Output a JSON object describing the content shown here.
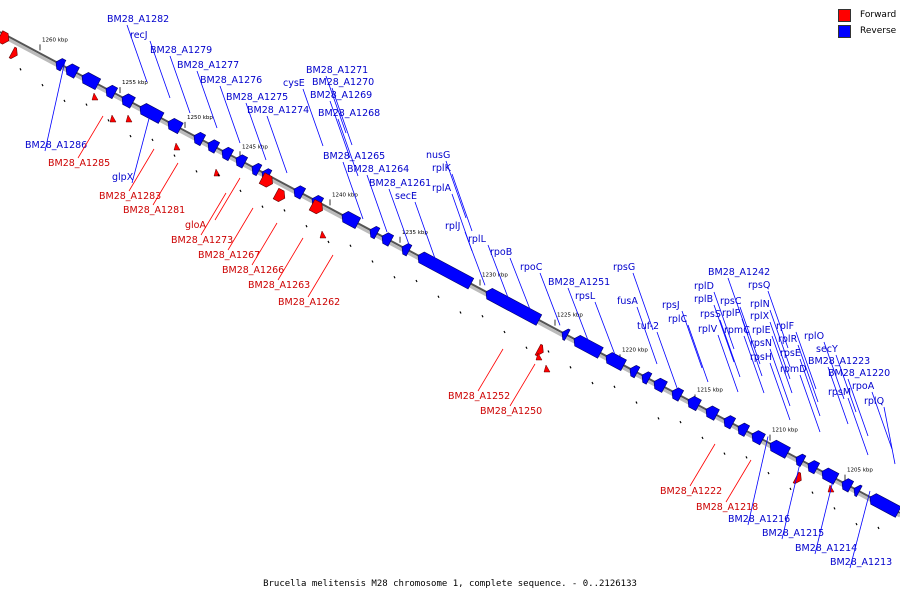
{
  "legend": [
    {
      "label": "Forward",
      "color": "#ff0000"
    },
    {
      "label": "Reverse",
      "color": "#0000ff"
    }
  ],
  "caption": "Brucella melitensis M28 chromosome 1, complete sequence. - 0..2126133",
  "ticks": [
    "1260 kbp",
    "1255 kbp",
    "1250 kbp",
    "1245 kbp",
    "1240 kbp",
    "1235 kbp",
    "1230 kbp",
    "1225 kbp",
    "1220 kbp",
    "1215 kbp",
    "1210 kbp",
    "1205 kbp"
  ],
  "reverse_labels": [
    "BM28_A1282",
    "recJ",
    "BM28_A1279",
    "BM28_A1277",
    "BM28_A1276",
    "cysE",
    "BM28_A1275",
    "BM28_A1274",
    "BM28_A1271",
    "BM28_A1270",
    "BM28_A1269",
    "BM28_A1268",
    "BM28_A1286",
    "glpX",
    "BM28_A1265",
    "BM28_A1264",
    "nusG",
    "rplK",
    "BM28_A1261",
    "rplA",
    "secE",
    "rplJ",
    "rplL",
    "rpoB",
    "rpoC",
    "BM28_A1251",
    "rpsL",
    "rpsG",
    "fusA",
    "tuf-2",
    "rpsJ",
    "rplD",
    "rplB",
    "rplC",
    "rplV",
    "rpsS",
    "rplP",
    "rpsC",
    "rpmC",
    "rplN",
    "rplX",
    "rplE",
    "rpsN",
    "rplF",
    "rpsH",
    "rplR",
    "rpsE",
    "rpmD",
    "rplO",
    "secY",
    "BM28_A1223",
    "BM28_A1220",
    "rpsM",
    "rpoA",
    "rplQ",
    "BM28_A1216",
    "BM28_A1215",
    "BM28_A1214",
    "BM28_A1213",
    "BM28_A1242",
    "rpsQ"
  ],
  "forward_labels": [
    "BM28_A1285",
    "BM28_A1283",
    "BM28_A1281",
    "gloA",
    "BM28_A1273",
    "BM28_A1267",
    "BM28_A1266",
    "BM28_A1263",
    "BM28_A1262",
    "BM28_A1252",
    "BM28_A1250",
    "BM28_A1222",
    "BM28_A1218"
  ]
}
